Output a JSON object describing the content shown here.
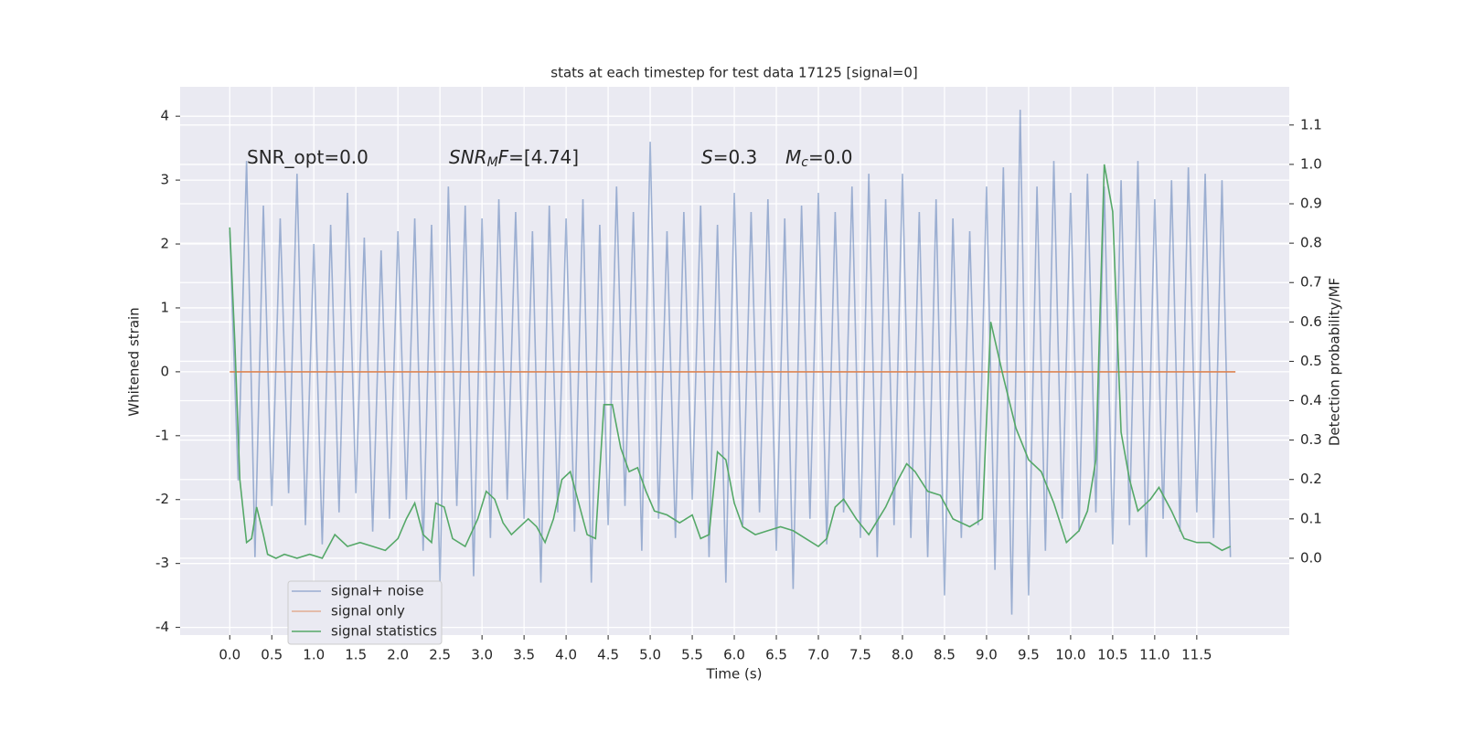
{
  "chart_data": {
    "type": "line",
    "title": "stats at each timestep for test data 17125 [signal=0]",
    "xlabel": "Time (s)",
    "ylabel": "Whitened strain",
    "y2label": "Detection probability/MF",
    "xlim": [
      -0.59,
      12.6
    ],
    "ylim": [
      -4.12,
      4.46
    ],
    "y2lim": [
      -0.195,
      1.197
    ],
    "xticks": [
      {
        "value": 0,
        "label": "0.0"
      },
      {
        "value": 0.5,
        "label": "0.5"
      },
      {
        "value": 1,
        "label": "1.0"
      },
      {
        "value": 1.5,
        "label": "1.5"
      },
      {
        "value": 2,
        "label": "2.0"
      },
      {
        "value": 2.5,
        "label": "2.5"
      },
      {
        "value": 3,
        "label": "3.0"
      },
      {
        "value": 3.5,
        "label": "3.5"
      },
      {
        "value": 4,
        "label": "4.0"
      },
      {
        "value": 4.5,
        "label": "4.5"
      },
      {
        "value": 5,
        "label": "5.0"
      },
      {
        "value": 5.5,
        "label": "5.5"
      },
      {
        "value": 6,
        "label": "6.0"
      },
      {
        "value": 6.5,
        "label": "6.5"
      },
      {
        "value": 7,
        "label": "7.0"
      },
      {
        "value": 7.5,
        "label": "7.5"
      },
      {
        "value": 8,
        "label": "8.0"
      },
      {
        "value": 8.5,
        "label": "8.5"
      },
      {
        "value": 9,
        "label": "9.0"
      },
      {
        "value": 9.5,
        "label": "9.5"
      },
      {
        "value": 10,
        "label": "10.0"
      },
      {
        "value": 10.5,
        "label": "10.5"
      },
      {
        "value": 11,
        "label": "11.0"
      },
      {
        "value": 11.5,
        "label": "11.5"
      }
    ],
    "yticks": [
      -4,
      -3,
      -2,
      -1,
      0,
      1,
      2,
      3,
      4
    ],
    "y2ticks": [
      {
        "value": 0,
        "label": "0.0"
      },
      {
        "value": 0.1,
        "label": "0.1"
      },
      {
        "value": 0.2,
        "label": "0.2"
      },
      {
        "value": 0.3,
        "label": "0.3"
      },
      {
        "value": 0.4,
        "label": "0.4"
      },
      {
        "value": 0.5,
        "label": "0.5"
      },
      {
        "value": 0.6,
        "label": "0.6"
      },
      {
        "value": 0.7,
        "label": "0.7"
      },
      {
        "value": 0.8,
        "label": "0.8"
      },
      {
        "value": 0.9,
        "label": "0.9"
      },
      {
        "value": 1,
        "label": "1.0"
      },
      {
        "value": 1.1,
        "label": "1.1"
      }
    ],
    "grid": true,
    "legend": "lower left",
    "annotations": [
      [
        {
          "t": "SNR_opt=0.0",
          "style": "normal"
        }
      ],
      [
        {
          "t": "SNR",
          "style": "italic"
        },
        {
          "t": "M",
          "style": "italic-sub"
        },
        {
          "t": "F",
          "style": "italic"
        },
        {
          "t": "=[4.74]",
          "style": "normal"
        }
      ],
      [
        {
          "t": "S",
          "style": "italic"
        },
        {
          "t": "=0.3",
          "style": "normal"
        }
      ],
      [
        {
          "t": "M",
          "style": "italic"
        },
        {
          "t": "c",
          "style": "italic-sub"
        },
        {
          "t": "=0.0",
          "style": "normal"
        }
      ]
    ],
    "series": [
      {
        "name": "signal+ noise",
        "color": "#4c72b0",
        "alpha": 0.5,
        "x": [
          0,
          0.1,
          0.2,
          0.3,
          0.4,
          0.5,
          0.6,
          0.7,
          0.8,
          0.9,
          1,
          1.1,
          1.2,
          1.3,
          1.4,
          1.5,
          1.6,
          1.7,
          1.8,
          1.9,
          2,
          2.1,
          2.2,
          2.3,
          2.4,
          2.5,
          2.6,
          2.7,
          2.8,
          2.9,
          3,
          3.1,
          3.2,
          3.3,
          3.4,
          3.5,
          3.6,
          3.7,
          3.8,
          3.9,
          4,
          4.1,
          4.2,
          4.3,
          4.4,
          4.5,
          4.6,
          4.7,
          4.8,
          4.9,
          5,
          5.1,
          5.2,
          5.3,
          5.4,
          5.5,
          5.6,
          5.7,
          5.8,
          5.9,
          6,
          6.1,
          6.2,
          6.3,
          6.4,
          6.5,
          6.6,
          6.7,
          6.8,
          6.9,
          7,
          7.1,
          7.2,
          7.3,
          7.4,
          7.5,
          7.6,
          7.7,
          7.8,
          7.9,
          8,
          8.1,
          8.2,
          8.3,
          8.4,
          8.5,
          8.6,
          8.7,
          8.8,
          8.9,
          9,
          9.1,
          9.2,
          9.3,
          9.4,
          9.5,
          9.6,
          9.7,
          9.8,
          9.9,
          10,
          10.1,
          10.2,
          10.3,
          10.4,
          10.5,
          10.6,
          10.7,
          10.8,
          10.9,
          11,
          11.1,
          11.2,
          11.3,
          11.4,
          11.5,
          11.6,
          11.7,
          11.8,
          11.9
        ],
        "values": [
          2.2,
          -1.7,
          3.3,
          -2.9,
          2.6,
          -2.1,
          2.4,
          -1.9,
          3.1,
          -2.4,
          2.0,
          -2.7,
          2.3,
          -2.2,
          2.8,
          -1.9,
          2.1,
          -2.5,
          1.9,
          -2.3,
          2.2,
          -2.0,
          2.4,
          -2.8,
          2.3,
          -3.3,
          2.9,
          -2.1,
          2.6,
          -3.2,
          2.4,
          -2.6,
          2.7,
          -2.0,
          2.5,
          -2.3,
          2.2,
          -3.3,
          2.6,
          -2.2,
          2.4,
          -2.5,
          2.7,
          -3.3,
          2.3,
          -2.4,
          2.9,
          -2.1,
          2.5,
          -2.8,
          3.6,
          -2.3,
          2.2,
          -2.6,
          2.5,
          -2.0,
          2.6,
          -2.9,
          2.3,
          -3.3,
          2.8,
          -2.4,
          2.5,
          -2.2,
          2.7,
          -2.8,
          2.4,
          -3.4,
          2.6,
          -2.3,
          2.8,
          -2.7,
          2.5,
          -2.2,
          2.9,
          -2.6,
          3.1,
          -2.9,
          2.7,
          -2.4,
          3.1,
          -2.6,
          2.5,
          -2.9,
          2.7,
          -3.5,
          2.4,
          -2.6,
          2.2,
          -2.4,
          2.9,
          -3.1,
          3.2,
          -3.8,
          4.1,
          -3.5,
          2.9,
          -2.8,
          3.3,
          -2.3,
          2.8,
          -2.5,
          3.1,
          -2.2,
          2.9,
          -2.7,
          3.0,
          -2.4,
          3.3,
          -2.9,
          2.7,
          -2.3,
          3.0,
          -2.5,
          3.2,
          -2.2,
          3.1,
          -2.6,
          3.0,
          -2.9
        ]
      },
      {
        "name": "signal only",
        "color": "#dd8452",
        "x": [
          0,
          11.96
        ],
        "values": [
          0,
          0
        ]
      },
      {
        "name": "signal statistics",
        "color": "#55a868",
        "axis": "y2",
        "x": [
          0,
          0.06,
          0.12,
          0.2,
          0.26,
          0.32,
          0.4,
          0.45,
          0.55,
          0.65,
          0.8,
          0.95,
          1.1,
          1.25,
          1.4,
          1.55,
          1.7,
          1.85,
          2,
          2.1,
          2.2,
          2.3,
          2.4,
          2.45,
          2.55,
          2.65,
          2.8,
          2.95,
          3.05,
          3.15,
          3.25,
          3.35,
          3.45,
          3.55,
          3.65,
          3.75,
          3.85,
          3.95,
          4.05,
          4.15,
          4.25,
          4.35,
          4.45,
          4.55,
          4.65,
          4.75,
          4.85,
          4.95,
          5.05,
          5.2,
          5.35,
          5.5,
          5.6,
          5.7,
          5.8,
          5.9,
          6,
          6.1,
          6.25,
          6.4,
          6.55,
          6.7,
          6.85,
          7,
          7.1,
          7.2,
          7.3,
          7.45,
          7.6,
          7.8,
          7.95,
          8.05,
          8.15,
          8.3,
          8.45,
          8.6,
          8.8,
          8.95,
          9.05,
          9.2,
          9.35,
          9.5,
          9.65,
          9.8,
          9.95,
          10.1,
          10.2,
          10.3,
          10.4,
          10.5,
          10.6,
          10.7,
          10.8,
          10.95,
          11.05,
          11.2,
          11.35,
          11.5,
          11.65,
          11.8,
          11.9
        ],
        "values": [
          0.84,
          0.55,
          0.2,
          0.04,
          0.05,
          0.13,
          0.06,
          0.01,
          0.0,
          0.01,
          0.0,
          0.01,
          0.0,
          0.06,
          0.03,
          0.04,
          0.03,
          0.02,
          0.05,
          0.1,
          0.14,
          0.06,
          0.04,
          0.14,
          0.13,
          0.05,
          0.03,
          0.1,
          0.17,
          0.15,
          0.09,
          0.06,
          0.08,
          0.1,
          0.08,
          0.04,
          0.1,
          0.2,
          0.22,
          0.14,
          0.06,
          0.05,
          0.39,
          0.39,
          0.28,
          0.22,
          0.23,
          0.17,
          0.12,
          0.11,
          0.09,
          0.11,
          0.05,
          0.06,
          0.27,
          0.25,
          0.14,
          0.08,
          0.06,
          0.07,
          0.08,
          0.07,
          0.05,
          0.03,
          0.05,
          0.13,
          0.15,
          0.1,
          0.06,
          0.13,
          0.2,
          0.24,
          0.22,
          0.17,
          0.16,
          0.1,
          0.08,
          0.1,
          0.6,
          0.46,
          0.33,
          0.25,
          0.22,
          0.14,
          0.04,
          0.07,
          0.12,
          0.25,
          1.0,
          0.88,
          0.32,
          0.2,
          0.12,
          0.15,
          0.18,
          0.12,
          0.05,
          0.04,
          0.04,
          0.02,
          0.03
        ]
      }
    ]
  }
}
